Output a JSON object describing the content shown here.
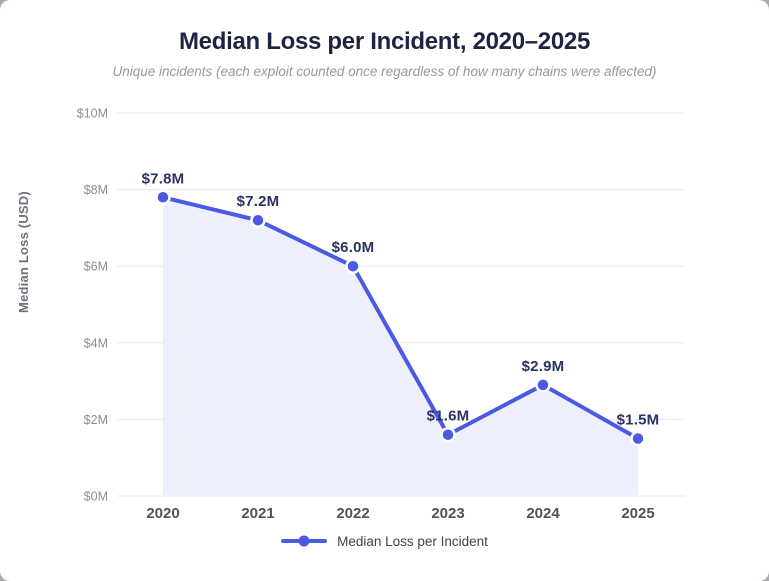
{
  "chart_data": {
    "type": "line",
    "title": "Median Loss per Incident, 2020–2025",
    "subtitle": "Unique incidents (each exploit counted once regardless of how many chains were affected)",
    "categories": [
      "2020",
      "2021",
      "2022",
      "2023",
      "2024",
      "2025"
    ],
    "series": [
      {
        "name": "Median Loss per Incident",
        "values": [
          7.8,
          7.2,
          6.0,
          1.6,
          2.9,
          1.5
        ],
        "point_labels": [
          "$7.8M",
          "$7.2M",
          "$6.0M",
          "$1.6M",
          "$2.9M",
          "$1.5M"
        ]
      }
    ],
    "xlabel": "",
    "ylabel": "Median Loss (USD)",
    "ylim": [
      0,
      10
    ],
    "ytick_values": [
      0,
      2,
      4,
      6,
      8,
      10
    ],
    "ytick_labels": [
      "$0M",
      "$2M",
      "$4M",
      "$6M",
      "$8M",
      "$10M"
    ],
    "grid": "horizontal",
    "legend_position": "bottom",
    "area_fill": true,
    "markers": true
  },
  "colors": {
    "line": "#4a5ae2",
    "marker_fill": "#4a5ae2",
    "marker_ring": "#ffffff",
    "area_fill": "#eeeffc",
    "gridline": "#e9e9ee",
    "title_text": "#1e2342",
    "subtitle_text": "#97979f",
    "data_label": "#2c3263",
    "y_tick_label": "#8b8e96",
    "x_tick_label": "#4f525a",
    "y_axis_title": "#6e717a",
    "legend_text": "#3f434c"
  }
}
